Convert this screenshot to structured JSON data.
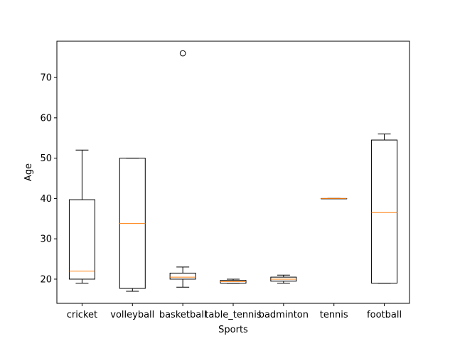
{
  "chart_data": {
    "type": "box",
    "title": "",
    "xlabel": "Sports",
    "ylabel": "Age",
    "ylim": [
      14,
      79
    ],
    "yticks": [
      20,
      30,
      40,
      50,
      60,
      70
    ],
    "grid": false,
    "colors": {
      "box": "#000000",
      "median": "#ff7f0e",
      "whisker": "#000000",
      "flier": "#000000"
    },
    "categories": [
      "cricket",
      "volleyball",
      "basketball",
      "table_tennis",
      "badminton",
      "tennis",
      "football"
    ],
    "boxes": [
      {
        "category": "cricket",
        "whislo": 19,
        "q1": 20,
        "med": 22,
        "q3": 39.7,
        "whishi": 52,
        "fliers": []
      },
      {
        "category": "volleyball",
        "whislo": 17,
        "q1": 17.7,
        "med": 33.8,
        "q3": 50,
        "whishi": 50,
        "fliers": []
      },
      {
        "category": "basketball",
        "whislo": 18,
        "q1": 20,
        "med": 20.5,
        "q3": 21.5,
        "whishi": 23,
        "fliers": [
          76
        ]
      },
      {
        "category": "table_tennis",
        "whislo": 19,
        "q1": 19,
        "med": 19.4,
        "q3": 19.7,
        "whishi": 20,
        "fliers": []
      },
      {
        "category": "badminton",
        "whislo": 19,
        "q1": 19.5,
        "med": 20,
        "q3": 20.5,
        "whishi": 21,
        "fliers": []
      },
      {
        "category": "tennis",
        "whislo": 40,
        "q1": 40,
        "med": 40,
        "q3": 40,
        "whishi": 40,
        "fliers": []
      },
      {
        "category": "football",
        "whislo": 19,
        "q1": 19,
        "med": 36.5,
        "q3": 54.5,
        "whishi": 56,
        "fliers": []
      }
    ]
  }
}
